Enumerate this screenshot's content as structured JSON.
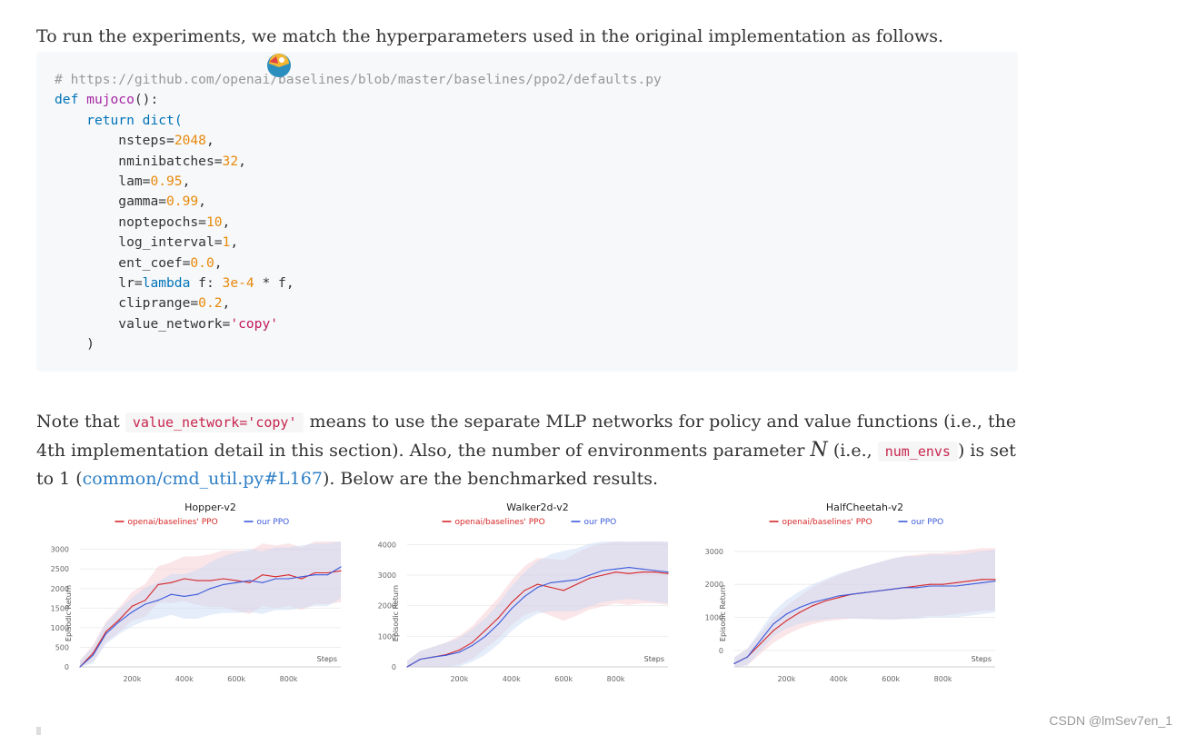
{
  "intro": "To run the experiments, we match the hyperparameters used in the original implementation as follows.",
  "code": {
    "comment_prefix": "# https://github.com/opena",
    "comment_suffix": "i/baselines/blob/master/baselines/ppo2/defaults.py",
    "def_kw": "def",
    "fn_name": "mujoco",
    "fn_tail": "():",
    "return_kw": "return",
    "dict_call": "dict(",
    "nsteps": "nsteps=",
    "nsteps_v": "2048",
    "nminibatches": "nminibatches=",
    "nminibatches_v": "32",
    "lam": "lam=",
    "lam_v": "0.95",
    "gamma": "gamma=",
    "gamma_v": "0.99",
    "noptepochs": "noptepochs=",
    "noptepochs_v": "10",
    "log_interval": "log_interval=",
    "log_interval_v": "1",
    "ent_coef": "ent_coef=",
    "ent_coef_v": "0.0",
    "lr": "lr=",
    "lr_lambda": "lambda",
    "lr_f": " f: ",
    "lr_num": "3e-4",
    "lr_tail": " * f,",
    "cliprange": "cliprange=",
    "cliprange_v": "0.2",
    "value_network": "value_network=",
    "value_network_v": "'copy'",
    "close": ")"
  },
  "note": {
    "t1": "Note that ",
    "code1": "value_network='copy'",
    "t2": " means to use the separate MLP networks for policy and value functions (i.e., the 4th implementation detail in this section). Also, the number of environments parameter ",
    "var": "N",
    "t3": " (i.e., ",
    "code2": "num_envs",
    "t4": ") is set to 1 (",
    "link": "common/cmd_util.py#L167",
    "t5": "). Below are the benchmarked results."
  },
  "colors": {
    "baselines": "#d62728",
    "ours": "#3b5bdb",
    "band_red": "#f4c7cf",
    "band_blue": "#c5d6f5"
  },
  "chart_data": [
    {
      "type": "line",
      "title": "Hopper-v2",
      "ylabel": "Episodic Return",
      "xlabel": "Steps",
      "x_ticks": [
        "200k",
        "400k",
        "600k",
        "800k"
      ],
      "y_ticks": [
        "0",
        "500",
        "1000",
        "1500",
        "2000",
        "2500",
        "3000"
      ],
      "ylim": [
        0,
        3200
      ],
      "xlim": [
        0,
        1000000
      ],
      "legend": [
        "openai/baselines' PPO",
        "our PPO"
      ],
      "series": [
        {
          "name": "openai/baselines' PPO",
          "x": [
            0,
            50000,
            100000,
            150000,
            200000,
            250000,
            300000,
            350000,
            400000,
            450000,
            500000,
            550000,
            600000,
            650000,
            700000,
            750000,
            800000,
            850000,
            900000,
            950000,
            1000000
          ],
          "values": [
            0,
            350,
            900,
            1200,
            1550,
            1700,
            2100,
            2150,
            2250,
            2200,
            2200,
            2250,
            2200,
            2150,
            2350,
            2300,
            2350,
            2250,
            2400,
            2400,
            2450
          ]
        },
        {
          "name": "our PPO",
          "x": [
            0,
            50000,
            100000,
            150000,
            200000,
            250000,
            300000,
            350000,
            400000,
            450000,
            500000,
            550000,
            600000,
            650000,
            700000,
            750000,
            800000,
            850000,
            900000,
            950000,
            1000000
          ],
          "values": [
            0,
            300,
            850,
            1150,
            1400,
            1600,
            1700,
            1850,
            1800,
            1850,
            2000,
            2100,
            2150,
            2200,
            2150,
            2250,
            2250,
            2300,
            2350,
            2350,
            2550
          ]
        }
      ]
    },
    {
      "type": "line",
      "title": "Walker2d-v2",
      "ylabel": "Episodic Return",
      "xlabel": "Steps",
      "x_ticks": [
        "200k",
        "400k",
        "600k",
        "800k"
      ],
      "y_ticks": [
        "0",
        "1000",
        "2000",
        "3000",
        "4000"
      ],
      "ylim": [
        0,
        4100
      ],
      "xlim": [
        0,
        1000000
      ],
      "legend": [
        "openai/baselines' PPO",
        "our PPO"
      ],
      "series": [
        {
          "name": "openai/baselines' PPO",
          "x": [
            0,
            50000,
            100000,
            150000,
            200000,
            250000,
            300000,
            350000,
            400000,
            450000,
            500000,
            550000,
            600000,
            650000,
            700000,
            750000,
            800000,
            850000,
            900000,
            950000,
            1000000
          ],
          "values": [
            0,
            250,
            320,
            400,
            550,
            800,
            1200,
            1600,
            2100,
            2500,
            2700,
            2600,
            2500,
            2700,
            2900,
            3000,
            3100,
            3050,
            3100,
            3100,
            3050
          ]
        },
        {
          "name": "our PPO",
          "x": [
            0,
            50000,
            100000,
            150000,
            200000,
            250000,
            300000,
            350000,
            400000,
            450000,
            500000,
            550000,
            600000,
            650000,
            700000,
            750000,
            800000,
            850000,
            900000,
            950000,
            1000000
          ],
          "values": [
            0,
            250,
            320,
            380,
            480,
            700,
            1000,
            1400,
            1900,
            2300,
            2600,
            2750,
            2800,
            2850,
            3000,
            3150,
            3200,
            3250,
            3200,
            3150,
            3100
          ]
        }
      ]
    },
    {
      "type": "line",
      "title": "HalfCheetah-v2",
      "ylabel": "Episodic Return",
      "xlabel": "Steps",
      "x_ticks": [
        "200k",
        "400k",
        "600k",
        "800k"
      ],
      "y_ticks": [
        "0",
        "1000",
        "2000",
        "3000"
      ],
      "ylim": [
        -500,
        3300
      ],
      "xlim": [
        0,
        1000000
      ],
      "legend": [
        "openai/baselines' PPO",
        "our PPO"
      ],
      "series": [
        {
          "name": "openai/baselines' PPO",
          "x": [
            0,
            50000,
            100000,
            150000,
            200000,
            250000,
            300000,
            350000,
            400000,
            450000,
            500000,
            550000,
            600000,
            650000,
            700000,
            750000,
            800000,
            850000,
            900000,
            950000,
            1000000
          ],
          "values": [
            -400,
            -200,
            200,
            600,
            900,
            1150,
            1350,
            1500,
            1600,
            1700,
            1750,
            1800,
            1850,
            1900,
            1950,
            2000,
            2000,
            2050,
            2100,
            2150,
            2150
          ]
        },
        {
          "name": "our PPO",
          "x": [
            0,
            50000,
            100000,
            150000,
            200000,
            250000,
            300000,
            350000,
            400000,
            450000,
            500000,
            550000,
            600000,
            650000,
            700000,
            750000,
            800000,
            850000,
            900000,
            950000,
            1000000
          ],
          "values": [
            -400,
            -200,
            300,
            800,
            1100,
            1300,
            1450,
            1550,
            1650,
            1700,
            1750,
            1800,
            1850,
            1900,
            1900,
            1950,
            1950,
            1950,
            2000,
            2050,
            2100
          ]
        }
      ]
    }
  ],
  "watermark": "CSDN @lmSev7en_1"
}
